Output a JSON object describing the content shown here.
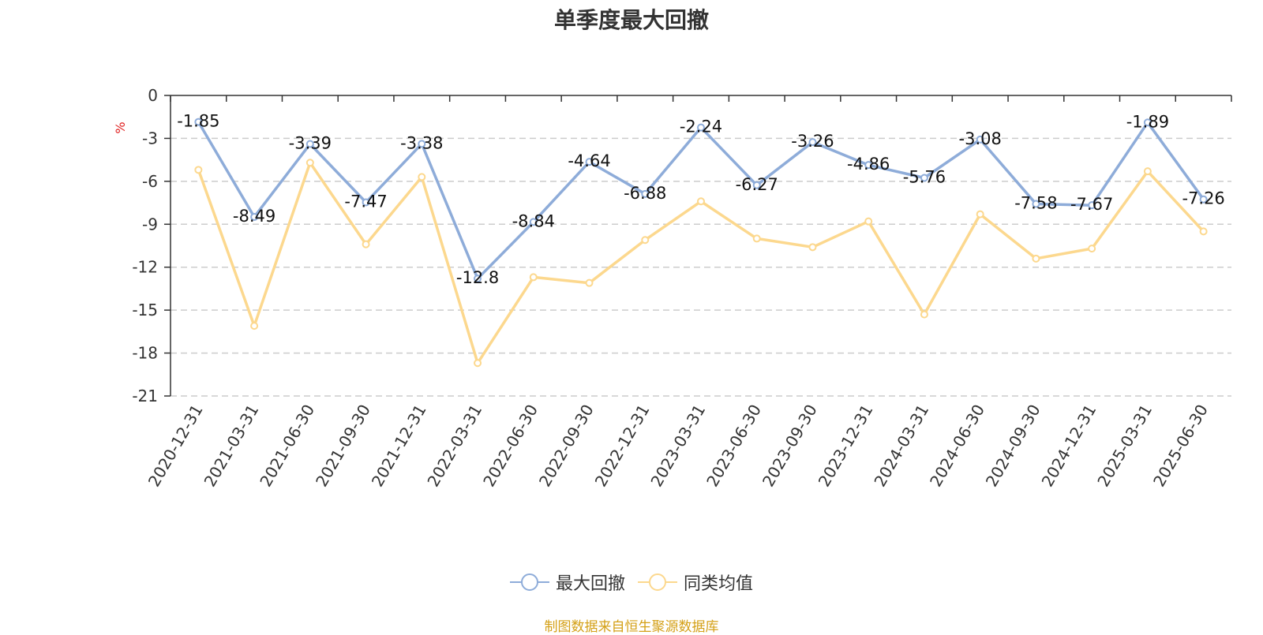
{
  "chart_data": {
    "type": "line",
    "title": "单季度最大回撤",
    "ylabel": "%",
    "xlabel": "",
    "categories": [
      "2020-12-31",
      "2021-03-31",
      "2021-06-30",
      "2021-09-30",
      "2021-12-31",
      "2022-03-31",
      "2022-06-30",
      "2022-09-30",
      "2022-12-31",
      "2023-03-31",
      "2023-06-30",
      "2023-09-30",
      "2023-12-31",
      "2024-03-31",
      "2024-06-30",
      "2024-09-30",
      "2024-12-31",
      "2025-03-31",
      "2025-06-30"
    ],
    "yticks": [
      "0",
      "-3",
      "-6",
      "-9",
      "-12",
      "-15",
      "-18",
      "-21"
    ],
    "ylim": [
      -21,
      0
    ],
    "grid": true,
    "legend_position": "bottom",
    "series": [
      {
        "name": "最大回撤",
        "color": "#8eacd9",
        "values": [
          -1.85,
          -8.49,
          -3.39,
          -7.47,
          -3.38,
          -12.8,
          -8.84,
          -4.64,
          -6.88,
          -2.24,
          -6.27,
          -3.26,
          -4.86,
          -5.76,
          -3.08,
          -7.58,
          -7.67,
          -1.89,
          -7.26
        ],
        "data_labels": [
          "-1.85",
          "-8.49",
          "-3.39",
          "-7.47",
          "-3.38",
          "-12.8",
          "-8.84",
          "-4.64",
          "-6.88",
          "-2.24",
          "-6.27",
          "-3.26",
          "-4.86",
          "-5.76",
          "-3.08",
          "-7.58",
          "-7.67",
          "-1.89",
          "-7.26"
        ]
      },
      {
        "name": "同类均值",
        "color": "#fcd88e",
        "values": [
          -5.2,
          -16.1,
          -4.7,
          -10.4,
          -5.7,
          -18.7,
          -12.7,
          -13.1,
          -10.1,
          -7.4,
          -10.0,
          -10.6,
          -8.8,
          -15.3,
          -8.3,
          -11.4,
          -10.7,
          -5.3,
          -9.5
        ]
      }
    ]
  },
  "source_note": "制图数据来自恒生聚源数据库"
}
